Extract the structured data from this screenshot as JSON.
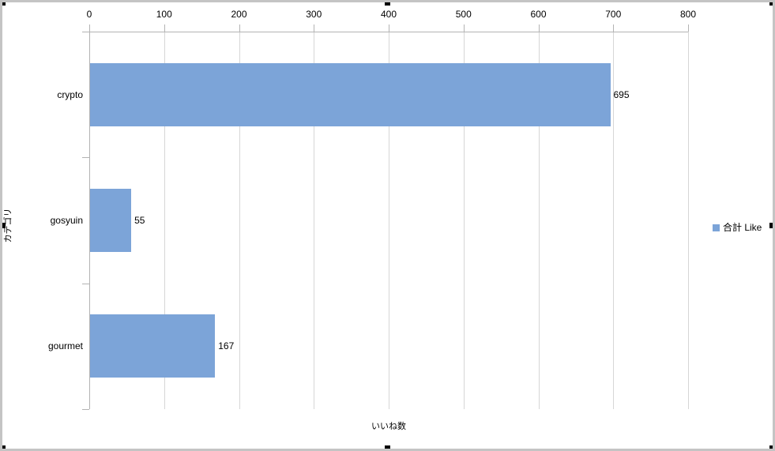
{
  "chart_data": {
    "type": "bar",
    "orientation": "horizontal",
    "title": "",
    "series_name": "合計 Like",
    "categories": [
      "crypto",
      "gosyuin",
      "gourmet"
    ],
    "values": [
      695,
      55,
      167
    ],
    "data_labels": [
      "695",
      "55",
      "167"
    ],
    "xlabel": "いいね数",
    "ylabel": "カテゴリ",
    "xlim": [
      0,
      800
    ],
    "xticks": [
      0,
      100,
      200,
      300,
      400,
      500,
      600,
      700,
      800
    ],
    "grid": "vertical-major",
    "legend_position": "right",
    "bar_color": "#7ca4d8",
    "gridline_color": "#d6d6d6",
    "axis_color": "#b3b3b3",
    "text_color": "#000000"
  }
}
